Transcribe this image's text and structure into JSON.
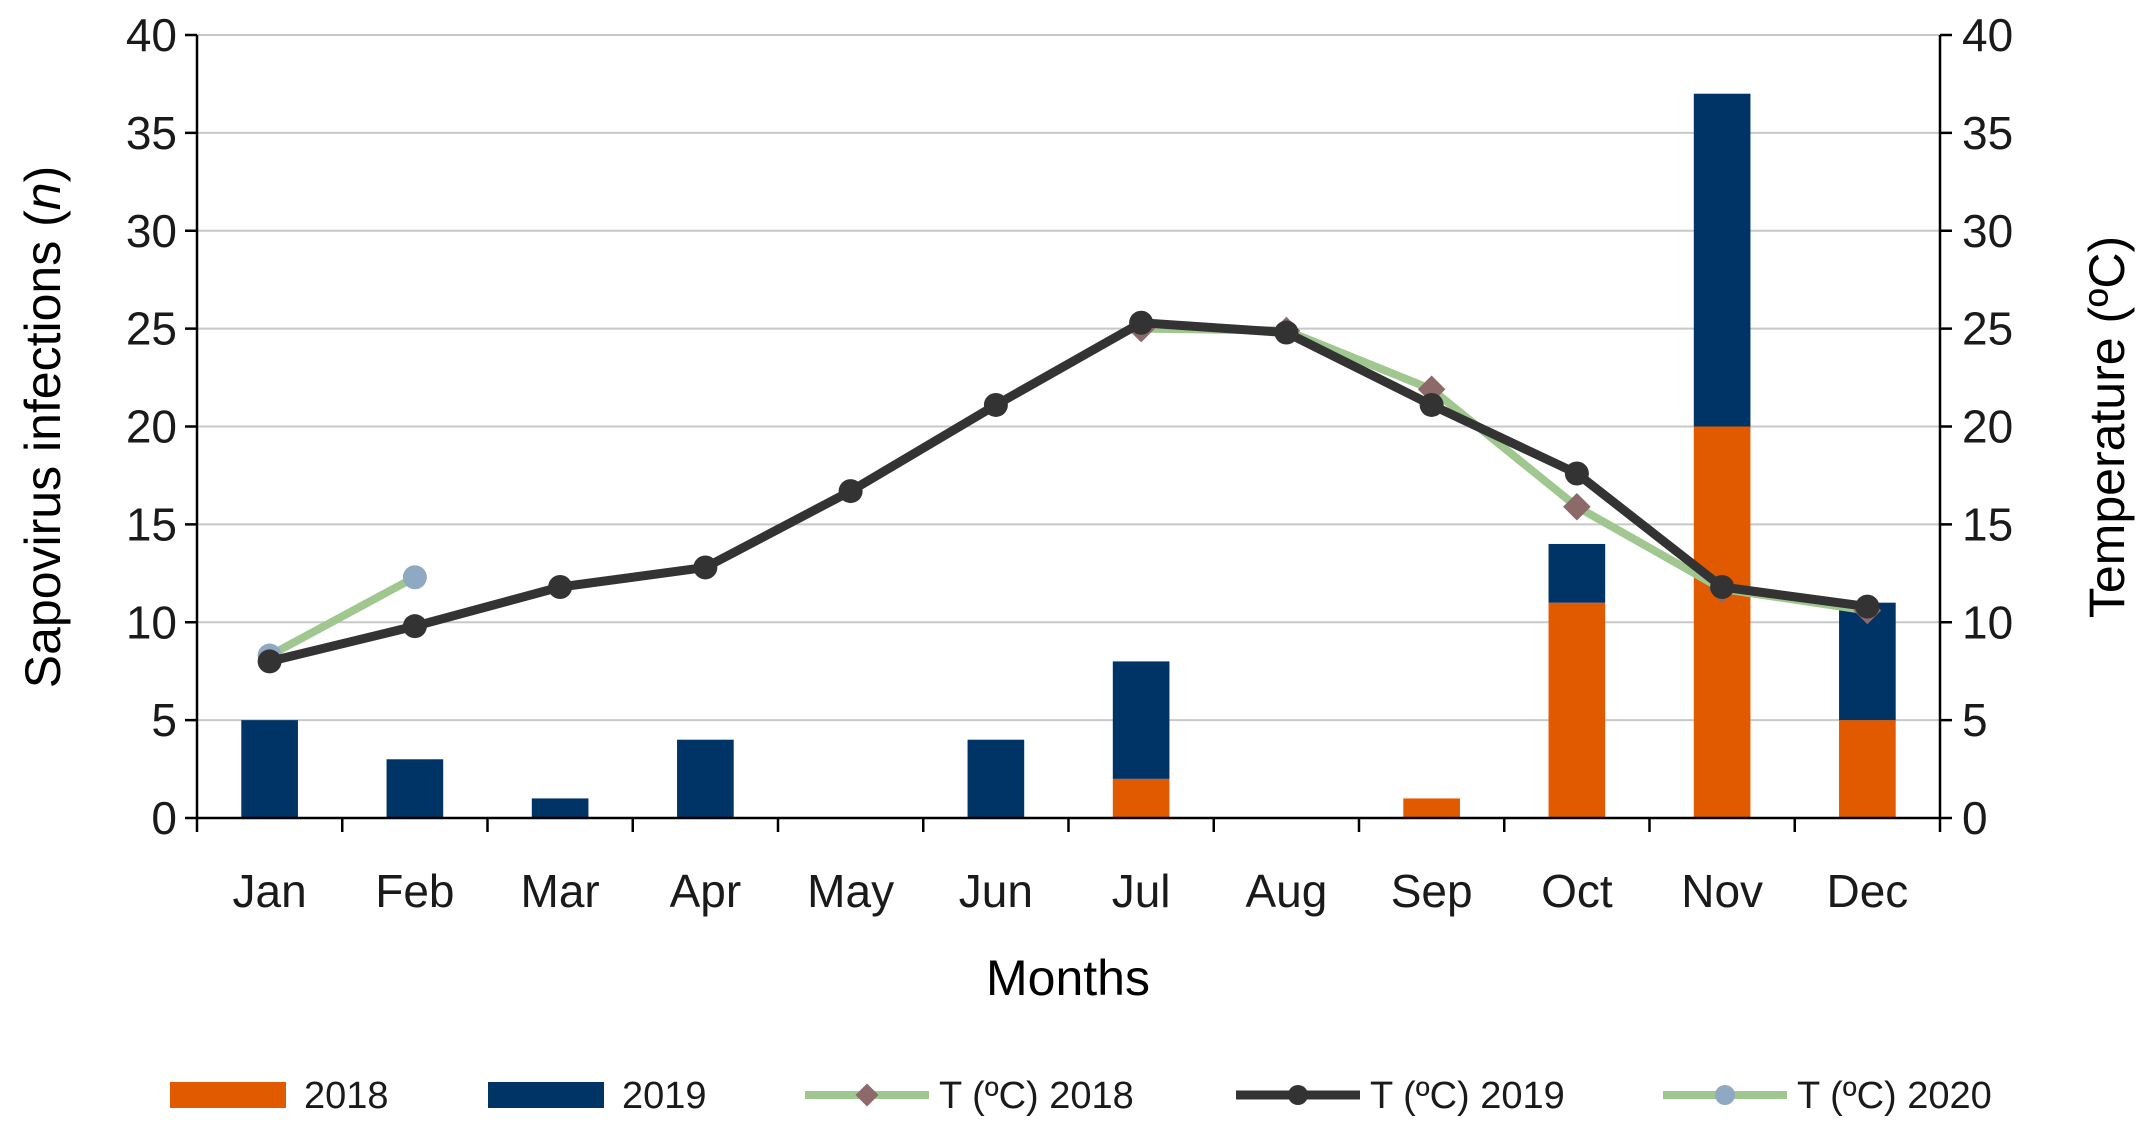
{
  "chart_data": {
    "type": "bar",
    "stacked": true,
    "title": "",
    "xlabel": "Months",
    "ylabel": "Sapovirus infections (n)",
    "ylabel_prefix": "Sapovirus infections (",
    "ylabel_italic": "n",
    "ylabel_suffix": ")",
    "y2label": "Temperature (ºC)",
    "ylim": [
      0,
      40
    ],
    "y2lim": [
      0,
      40
    ],
    "yticks": [
      0,
      5,
      10,
      15,
      20,
      25,
      30,
      35,
      40
    ],
    "grid": true,
    "legend_position": "bottom",
    "categories": [
      "Jan",
      "Feb",
      "Mar",
      "Apr",
      "May",
      "Jun",
      "Jul",
      "Aug",
      "Sep",
      "Oct",
      "Nov",
      "Dec"
    ],
    "series": [
      {
        "name": "2018",
        "kind": "bar",
        "axis": "left",
        "color": "#E15A00",
        "values": [
          0,
          0,
          0,
          0,
          0,
          0,
          2,
          0,
          1,
          11,
          20,
          5
        ]
      },
      {
        "name": "2019",
        "kind": "bar",
        "axis": "left",
        "color": "#003366",
        "values": [
          5,
          3,
          1,
          4,
          0,
          4,
          6,
          0,
          0,
          3,
          17,
          6
        ]
      },
      {
        "name": "T (ºC) 2018",
        "kind": "line",
        "axis": "right",
        "color": "#9FC78F",
        "marker": "diamond",
        "marker_color": "#8C6A6A",
        "values": [
          null,
          null,
          null,
          null,
          null,
          null,
          25.0,
          24.9,
          21.9,
          15.9,
          11.7,
          10.6
        ]
      },
      {
        "name": "T (ºC) 2019",
        "kind": "line",
        "axis": "right",
        "color": "#333333",
        "marker": "circle",
        "marker_color": "#333333",
        "values": [
          8.0,
          9.8,
          11.8,
          12.8,
          16.7,
          21.1,
          25.3,
          24.8,
          21.1,
          17.6,
          11.8,
          10.8
        ]
      },
      {
        "name": "T (ºC) 2020",
        "kind": "line",
        "axis": "right",
        "color": "#9FC78F",
        "marker": "circle",
        "marker_color": "#8FA9C2",
        "values": [
          8.3,
          12.3,
          null,
          null,
          null,
          null,
          null,
          null,
          null,
          null,
          null,
          null
        ]
      }
    ]
  }
}
